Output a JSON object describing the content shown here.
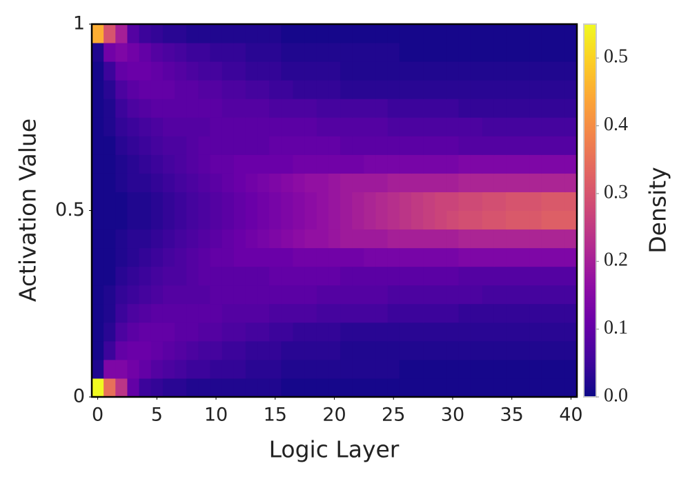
{
  "chart_data": {
    "type": "heatmap",
    "xlabel": "Logic Layer",
    "ylabel": "Activation Value",
    "colorbar_label": "Density",
    "colormap": "plasma",
    "x": [
      0,
      1,
      2,
      3,
      4,
      5,
      6,
      7,
      8,
      9,
      10,
      11,
      12,
      13,
      14,
      15,
      16,
      17,
      18,
      19,
      20,
      21,
      22,
      23,
      24,
      25,
      26,
      27,
      28,
      29,
      30,
      31,
      32,
      33,
      34,
      35,
      36,
      37,
      38,
      39,
      40
    ],
    "ybins": [
      0,
      0.05,
      0.1,
      0.15,
      0.2,
      0.25,
      0.3,
      0.35,
      0.4,
      0.45,
      0.5,
      0.55,
      0.6,
      0.65,
      0.7,
      0.75,
      0.8,
      0.85,
      0.9,
      0.95,
      1
    ],
    "xlim": [
      -0.5,
      40.5
    ],
    "xticks": [
      0,
      5,
      10,
      15,
      20,
      25,
      30,
      35,
      40
    ],
    "ylim": [
      0,
      1
    ],
    "yticks": [
      0,
      0.5,
      1
    ],
    "clim": [
      0,
      0.55
    ],
    "cticks": [
      {
        "value": 0,
        "label": "0.0"
      },
      {
        "value": 0.1,
        "label": "0.1"
      },
      {
        "value": 0.2,
        "label": "0.2"
      },
      {
        "value": 0.3,
        "label": "0.3"
      },
      {
        "value": 0.4,
        "label": "0.4"
      },
      {
        "value": 0.5,
        "label": "0.5"
      }
    ],
    "z": [
      [
        0.55,
        0.35,
        0.24,
        0.1,
        0.05,
        0.04,
        0.03,
        0.03,
        0.02,
        0.02,
        0.02,
        0.02,
        0.02,
        0.02,
        0.02,
        0.02,
        0.01,
        0.01,
        0.01,
        0.01,
        0.01,
        0.01,
        0.01,
        0.01,
        0.01,
        0.01,
        0.01,
        0.01,
        0.01,
        0.01,
        0.01,
        0.01,
        0.01,
        0.01,
        0.01,
        0.01,
        0.01,
        0.01,
        0.01,
        0.01,
        0.01
      ],
      [
        0.02,
        0.14,
        0.14,
        0.12,
        0.1,
        0.08,
        0.07,
        0.06,
        0.05,
        0.05,
        0.04,
        0.04,
        0.04,
        0.03,
        0.03,
        0.03,
        0.02,
        0.02,
        0.02,
        0.02,
        0.02,
        0.02,
        0.02,
        0.02,
        0.02,
        0.02,
        0.01,
        0.01,
        0.01,
        0.01,
        0.01,
        0.01,
        0.01,
        0.01,
        0.01,
        0.01,
        0.01,
        0.01,
        0.01,
        0.01,
        0.01
      ],
      [
        0.01,
        0.05,
        0.1,
        0.11,
        0.11,
        0.1,
        0.09,
        0.08,
        0.07,
        0.06,
        0.06,
        0.05,
        0.05,
        0.04,
        0.04,
        0.04,
        0.03,
        0.03,
        0.03,
        0.03,
        0.03,
        0.02,
        0.02,
        0.02,
        0.02,
        0.02,
        0.02,
        0.02,
        0.02,
        0.02,
        0.02,
        0.02,
        0.02,
        0.02,
        0.02,
        0.02,
        0.02,
        0.02,
        0.02,
        0.02,
        0.02
      ],
      [
        0.01,
        0.03,
        0.07,
        0.09,
        0.1,
        0.1,
        0.1,
        0.09,
        0.09,
        0.08,
        0.08,
        0.07,
        0.07,
        0.06,
        0.06,
        0.05,
        0.05,
        0.04,
        0.04,
        0.04,
        0.04,
        0.03,
        0.03,
        0.03,
        0.03,
        0.03,
        0.03,
        0.03,
        0.03,
        0.03,
        0.03,
        0.03,
        0.03,
        0.03,
        0.03,
        0.03,
        0.03,
        0.03,
        0.03,
        0.03,
        0.03
      ],
      [
        0.01,
        0.02,
        0.05,
        0.07,
        0.08,
        0.09,
        0.09,
        0.09,
        0.09,
        0.09,
        0.09,
        0.08,
        0.08,
        0.08,
        0.08,
        0.07,
        0.07,
        0.07,
        0.07,
        0.06,
        0.06,
        0.06,
        0.06,
        0.06,
        0.06,
        0.05,
        0.05,
        0.05,
        0.05,
        0.05,
        0.05,
        0.04,
        0.04,
        0.04,
        0.04,
        0.04,
        0.04,
        0.04,
        0.04,
        0.04,
        0.04
      ],
      [
        0.01,
        0.02,
        0.04,
        0.05,
        0.06,
        0.07,
        0.08,
        0.08,
        0.08,
        0.08,
        0.09,
        0.09,
        0.09,
        0.09,
        0.09,
        0.09,
        0.09,
        0.09,
        0.09,
        0.08,
        0.08,
        0.08,
        0.08,
        0.08,
        0.08,
        0.07,
        0.07,
        0.07,
        0.07,
        0.07,
        0.07,
        0.07,
        0.07,
        0.06,
        0.06,
        0.06,
        0.06,
        0.06,
        0.06,
        0.06,
        0.06
      ],
      [
        0.01,
        0.01,
        0.03,
        0.04,
        0.05,
        0.06,
        0.07,
        0.07,
        0.08,
        0.09,
        0.09,
        0.09,
        0.09,
        0.09,
        0.09,
        0.1,
        0.1,
        0.1,
        0.1,
        0.1,
        0.1,
        0.09,
        0.09,
        0.09,
        0.09,
        0.09,
        0.09,
        0.09,
        0.09,
        0.09,
        0.09,
        0.08,
        0.08,
        0.08,
        0.08,
        0.08,
        0.08,
        0.08,
        0.08,
        0.08,
        0.08
      ],
      [
        0.01,
        0.01,
        0.02,
        0.03,
        0.04,
        0.05,
        0.06,
        0.07,
        0.08,
        0.09,
        0.1,
        0.1,
        0.11,
        0.11,
        0.11,
        0.11,
        0.11,
        0.12,
        0.12,
        0.12,
        0.12,
        0.12,
        0.12,
        0.13,
        0.13,
        0.13,
        0.13,
        0.13,
        0.13,
        0.13,
        0.13,
        0.14,
        0.14,
        0.14,
        0.14,
        0.14,
        0.14,
        0.14,
        0.14,
        0.14,
        0.14
      ],
      [
        0.01,
        0.01,
        0.02,
        0.03,
        0.03,
        0.04,
        0.05,
        0.06,
        0.07,
        0.08,
        0.09,
        0.1,
        0.11,
        0.12,
        0.13,
        0.14,
        0.15,
        0.16,
        0.17,
        0.17,
        0.18,
        0.19,
        0.19,
        0.19,
        0.19,
        0.2,
        0.2,
        0.2,
        0.2,
        0.2,
        0.2,
        0.21,
        0.21,
        0.21,
        0.21,
        0.21,
        0.21,
        0.21,
        0.21,
        0.21,
        0.21
      ],
      [
        0.01,
        0.01,
        0.01,
        0.02,
        0.02,
        0.03,
        0.04,
        0.05,
        0.06,
        0.07,
        0.08,
        0.09,
        0.1,
        0.11,
        0.12,
        0.13,
        0.14,
        0.15,
        0.16,
        0.17,
        0.18,
        0.19,
        0.2,
        0.21,
        0.22,
        0.23,
        0.24,
        0.25,
        0.26,
        0.27,
        0.28,
        0.29,
        0.29,
        0.3,
        0.3,
        0.31,
        0.31,
        0.31,
        0.32,
        0.32,
        0.32
      ],
      [
        0.01,
        0.01,
        0.01,
        0.02,
        0.02,
        0.03,
        0.04,
        0.05,
        0.06,
        0.07,
        0.08,
        0.09,
        0.1,
        0.11,
        0.12,
        0.13,
        0.14,
        0.15,
        0.16,
        0.17,
        0.18,
        0.19,
        0.2,
        0.21,
        0.22,
        0.23,
        0.24,
        0.25,
        0.26,
        0.27,
        0.27,
        0.28,
        0.28,
        0.29,
        0.29,
        0.3,
        0.3,
        0.3,
        0.31,
        0.31,
        0.31
      ],
      [
        0.01,
        0.01,
        0.02,
        0.03,
        0.03,
        0.04,
        0.05,
        0.06,
        0.07,
        0.08,
        0.09,
        0.1,
        0.11,
        0.12,
        0.13,
        0.14,
        0.15,
        0.16,
        0.17,
        0.17,
        0.18,
        0.19,
        0.19,
        0.19,
        0.19,
        0.2,
        0.2,
        0.2,
        0.2,
        0.2,
        0.2,
        0.21,
        0.21,
        0.21,
        0.21,
        0.21,
        0.21,
        0.21,
        0.21,
        0.21,
        0.21
      ],
      [
        0.01,
        0.01,
        0.02,
        0.03,
        0.04,
        0.05,
        0.06,
        0.07,
        0.08,
        0.09,
        0.1,
        0.1,
        0.11,
        0.11,
        0.11,
        0.11,
        0.11,
        0.12,
        0.12,
        0.12,
        0.12,
        0.12,
        0.12,
        0.13,
        0.13,
        0.13,
        0.13,
        0.13,
        0.13,
        0.13,
        0.13,
        0.14,
        0.14,
        0.14,
        0.14,
        0.14,
        0.14,
        0.14,
        0.14,
        0.14,
        0.14
      ],
      [
        0.01,
        0.01,
        0.03,
        0.04,
        0.05,
        0.06,
        0.07,
        0.07,
        0.08,
        0.09,
        0.09,
        0.09,
        0.09,
        0.09,
        0.09,
        0.1,
        0.1,
        0.1,
        0.1,
        0.1,
        0.1,
        0.09,
        0.09,
        0.09,
        0.09,
        0.09,
        0.09,
        0.09,
        0.09,
        0.09,
        0.09,
        0.08,
        0.08,
        0.08,
        0.08,
        0.08,
        0.08,
        0.08,
        0.08,
        0.08,
        0.08
      ],
      [
        0.01,
        0.02,
        0.04,
        0.05,
        0.06,
        0.07,
        0.08,
        0.08,
        0.08,
        0.08,
        0.09,
        0.09,
        0.09,
        0.09,
        0.09,
        0.09,
        0.09,
        0.09,
        0.09,
        0.08,
        0.08,
        0.08,
        0.08,
        0.08,
        0.08,
        0.07,
        0.07,
        0.07,
        0.07,
        0.07,
        0.07,
        0.07,
        0.07,
        0.06,
        0.06,
        0.06,
        0.06,
        0.06,
        0.06,
        0.06,
        0.06
      ],
      [
        0.01,
        0.02,
        0.05,
        0.07,
        0.08,
        0.09,
        0.09,
        0.09,
        0.09,
        0.09,
        0.09,
        0.08,
        0.08,
        0.08,
        0.08,
        0.07,
        0.07,
        0.07,
        0.07,
        0.06,
        0.06,
        0.06,
        0.06,
        0.06,
        0.06,
        0.05,
        0.05,
        0.05,
        0.05,
        0.05,
        0.05,
        0.04,
        0.04,
        0.04,
        0.04,
        0.04,
        0.04,
        0.04,
        0.04,
        0.04,
        0.04
      ],
      [
        0.01,
        0.03,
        0.07,
        0.09,
        0.1,
        0.1,
        0.1,
        0.09,
        0.09,
        0.08,
        0.08,
        0.07,
        0.07,
        0.06,
        0.06,
        0.05,
        0.05,
        0.04,
        0.04,
        0.04,
        0.04,
        0.03,
        0.03,
        0.03,
        0.03,
        0.03,
        0.03,
        0.03,
        0.03,
        0.03,
        0.03,
        0.03,
        0.03,
        0.03,
        0.03,
        0.03,
        0.03,
        0.03,
        0.03,
        0.03,
        0.03
      ],
      [
        0.01,
        0.05,
        0.1,
        0.11,
        0.11,
        0.1,
        0.09,
        0.08,
        0.07,
        0.06,
        0.06,
        0.05,
        0.05,
        0.04,
        0.04,
        0.04,
        0.03,
        0.03,
        0.03,
        0.03,
        0.03,
        0.02,
        0.02,
        0.02,
        0.02,
        0.02,
        0.02,
        0.02,
        0.02,
        0.02,
        0.02,
        0.02,
        0.02,
        0.02,
        0.02,
        0.02,
        0.02,
        0.02,
        0.02,
        0.02,
        0.02
      ],
      [
        0.02,
        0.12,
        0.14,
        0.12,
        0.1,
        0.08,
        0.07,
        0.06,
        0.05,
        0.05,
        0.04,
        0.04,
        0.04,
        0.03,
        0.03,
        0.03,
        0.02,
        0.02,
        0.02,
        0.02,
        0.02,
        0.02,
        0.02,
        0.02,
        0.02,
        0.02,
        0.01,
        0.01,
        0.01,
        0.01,
        0.01,
        0.01,
        0.01,
        0.01,
        0.01,
        0.01,
        0.01,
        0.01,
        0.01,
        0.01,
        0.01
      ],
      [
        0.45,
        0.3,
        0.2,
        0.08,
        0.05,
        0.04,
        0.03,
        0.03,
        0.02,
        0.02,
        0.02,
        0.02,
        0.02,
        0.02,
        0.02,
        0.02,
        0.01,
        0.01,
        0.01,
        0.01,
        0.01,
        0.01,
        0.01,
        0.01,
        0.01,
        0.01,
        0.01,
        0.01,
        0.01,
        0.01,
        0.01,
        0.01,
        0.01,
        0.01,
        0.01,
        0.01,
        0.01,
        0.01,
        0.01,
        0.01,
        0.01
      ]
    ]
  }
}
